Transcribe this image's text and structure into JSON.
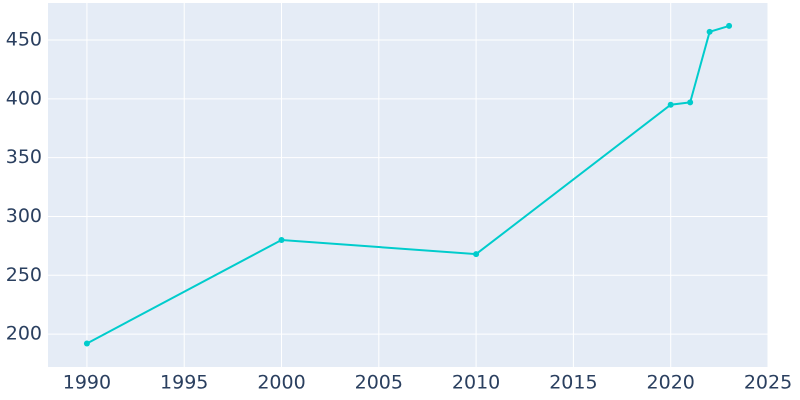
{
  "chart_data": {
    "type": "line",
    "x": [
      1990,
      2000,
      2010,
      2020,
      2021,
      2022,
      2023
    ],
    "series": [
      {
        "color": "#00cccc",
        "values": [
          192,
          280,
          268,
          395,
          397,
          457,
          462
        ]
      }
    ],
    "xlim": [
      1988,
      2025
    ],
    "xticks": [
      1990,
      1995,
      2000,
      2005,
      2010,
      2015,
      2020,
      2025
    ],
    "ylim": [
      172,
      481.5
    ],
    "yticks": [
      200,
      250,
      300,
      350,
      400,
      450
    ],
    "grid": true
  }
}
